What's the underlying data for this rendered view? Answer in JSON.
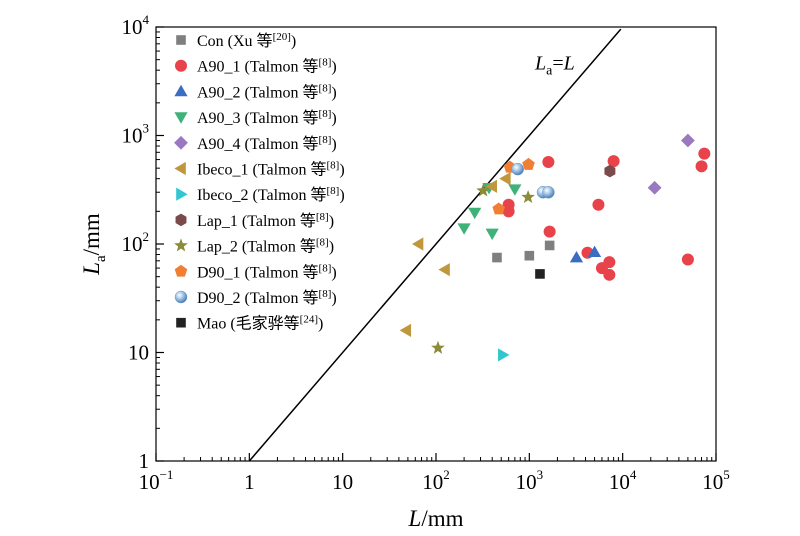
{
  "chart_data": {
    "type": "scatter",
    "x_scale": "log",
    "y_scale": "log",
    "xlim": [
      0.1,
      100000
    ],
    "ylim": [
      1,
      10000
    ],
    "xlabel": {
      "italic": "L",
      "unit": "/mm"
    },
    "ylabel": {
      "italic": "L",
      "sub": "a",
      "unit": "/mm"
    },
    "x_ticks": [
      {
        "value": 0.1,
        "base": "10",
        "exp": "−1"
      },
      {
        "value": 1,
        "text": "1"
      },
      {
        "value": 10,
        "text": "10"
      },
      {
        "value": 100,
        "base": "10",
        "exp": "2"
      },
      {
        "value": 1000,
        "base": "10",
        "exp": "3"
      },
      {
        "value": 10000,
        "base": "10",
        "exp": "4"
      },
      {
        "value": 100000,
        "base": "10",
        "exp": "5"
      }
    ],
    "y_ticks": [
      {
        "value": 1,
        "text": "1"
      },
      {
        "value": 10,
        "text": "10"
      },
      {
        "value": 100,
        "base": "10",
        "exp": "2"
      },
      {
        "value": 1000,
        "base": "10",
        "exp": "3"
      },
      {
        "value": 10000,
        "base": "10",
        "exp": "4"
      }
    ],
    "reference_line": {
      "equation": "y = x",
      "label": {
        "italic": "L",
        "sub": "a",
        "rest": "=",
        "italic2": "L"
      },
      "label_at": [
        1150,
        4700
      ]
    },
    "legend_placement": "top-left",
    "series": [
      {
        "name": "Con (Xu 等",
        "ref": "[20]",
        "close": ")",
        "marker": "square",
        "color": "#7f7f7f",
        "points": [
          [
            450,
            75
          ],
          [
            1000,
            78
          ],
          [
            1650,
            97
          ]
        ]
      },
      {
        "name": "A90_1 (Talmon 等",
        "ref": "[8]",
        "close": ")",
        "marker": "circle",
        "color": "#e8434a",
        "points": [
          [
            1600,
            570
          ],
          [
            1650,
            130
          ],
          [
            600,
            230
          ],
          [
            600,
            200
          ],
          [
            5500,
            230
          ],
          [
            8000,
            580
          ],
          [
            4200,
            83
          ],
          [
            6000,
            60
          ],
          [
            7200,
            52
          ],
          [
            7200,
            68
          ],
          [
            50000,
            72
          ],
          [
            75000,
            680
          ],
          [
            70000,
            520
          ]
        ]
      },
      {
        "name": "A90_2 (Talmon 等",
        "ref": "[8]",
        "close": ")",
        "marker": "triangle-up",
        "color": "#3b6ec0",
        "points": [
          [
            3200,
            75
          ],
          [
            5000,
            84
          ]
        ]
      },
      {
        "name": "A90_3 (Talmon 等",
        "ref": "[8]",
        "close": ")",
        "marker": "triangle-down",
        "color": "#3fb27a",
        "points": [
          [
            260,
            195
          ],
          [
            200,
            140
          ],
          [
            400,
            125
          ],
          [
            370,
            330
          ],
          [
            700,
            320
          ]
        ]
      },
      {
        "name": "A90_4 (Talmon 等",
        "ref": "[8]",
        "close": ")",
        "marker": "diamond",
        "color": "#9b79c0",
        "points": [
          [
            22000,
            330
          ],
          [
            50000,
            900
          ]
        ]
      },
      {
        "name": "Ibeco_1 (Talmon 等",
        "ref": "[8]",
        "close": ")",
        "marker": "triangle-left",
        "color": "#c1973d",
        "points": [
          [
            65,
            100
          ],
          [
            125,
            58
          ],
          [
            48,
            16
          ],
          [
            400,
            340
          ],
          [
            560,
            400
          ]
        ]
      },
      {
        "name": "Ibeco_2 (Talmon 等",
        "ref": "[8]",
        "close": ")",
        "marker": "triangle-right",
        "color": "#31c6d0",
        "points": [
          [
            520,
            9.5
          ]
        ]
      },
      {
        "name": "Lap_1 (Talmon 等",
        "ref": "[8]",
        "close": ")",
        "marker": "hexagon",
        "color": "#7b4b4b",
        "points": [
          [
            7300,
            470
          ]
        ]
      },
      {
        "name": "Lap_2 (Talmon 等",
        "ref": "[8]",
        "close": ")",
        "marker": "star",
        "color": "#8b8b3a",
        "points": [
          [
            105,
            11
          ],
          [
            320,
            310
          ],
          [
            970,
            270
          ]
        ]
      },
      {
        "name": "D90_1 (Talmon 等",
        "ref": "[8]",
        "close": ")",
        "marker": "pentagon",
        "color": "#f07f33",
        "points": [
          [
            620,
            510
          ],
          [
            980,
            540
          ],
          [
            470,
            210
          ]
        ]
      },
      {
        "name": "D90_2 (Talmon 等",
        "ref": "[8]",
        "close": ")",
        "marker": "sphere",
        "color": "#6b9ac9",
        "points": [
          [
            750,
            490
          ],
          [
            1400,
            300
          ],
          [
            1600,
            300
          ]
        ]
      },
      {
        "name": "Mao (毛家骅等",
        "ref": "[24]",
        "close": ")",
        "marker": "square",
        "color": "#222222",
        "points": [
          [
            1300,
            53
          ]
        ]
      }
    ]
  }
}
